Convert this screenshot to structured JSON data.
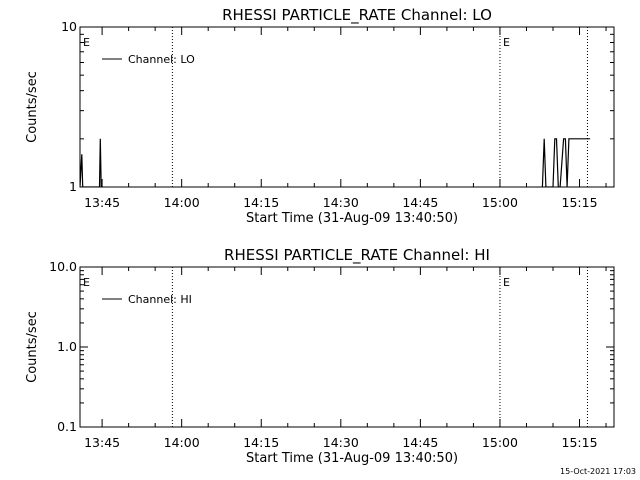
{
  "chart_data": [
    {
      "type": "line",
      "title": "RHESSI PARTICLE_RATE Channel: LO",
      "xlabel": "Start Time (31-Aug-09 13:40:50)",
      "ylabel": "Counts/sec",
      "yscale": "log",
      "ylim": [
        1,
        10
      ],
      "y_ticks": [
        "1",
        "10"
      ],
      "xlim": [
        "13:40:50",
        "15:21:30"
      ],
      "x_ticks": [
        "13:45",
        "14:00",
        "14:15",
        "14:30",
        "14:45",
        "15:00",
        "15:15"
      ],
      "legend": {
        "entries": [
          "Channel: LO"
        ],
        "placement": "top-left"
      },
      "event_markers": [
        {
          "label": "E",
          "time": "13:40:50"
        },
        {
          "label": "E",
          "time": "15:00:00"
        }
      ],
      "dotted_lines": [
        "13:58:15",
        "15:00:00",
        "15:16:30"
      ],
      "series": [
        {
          "name": "Channel: LO",
          "x": [
            "13:40:50",
            "13:41:10",
            "13:41:20",
            "13:41:30",
            "13:44:30",
            "13:44:40",
            "13:44:50",
            "13:45:00",
            "13:45:10",
            "15:08:00",
            "15:08:20",
            "15:08:40",
            "15:09:00",
            "15:09:20",
            "15:10:00",
            "15:10:20",
            "15:10:40",
            "15:11:00",
            "15:11:20",
            "15:12:00",
            "15:12:20",
            "15:12:40",
            "15:13:00",
            "15:13:20",
            "15:17:00"
          ],
          "y": [
            1.0,
            1.6,
            1.0,
            1.0,
            1.0,
            2.0,
            1.0,
            1.0,
            1.0,
            1.0,
            2.0,
            1.0,
            1.0,
            1.0,
            1.0,
            2.0,
            2.0,
            1.0,
            1.0,
            2.0,
            2.0,
            1.0,
            2.0,
            2.0,
            2.0
          ]
        }
      ]
    },
    {
      "type": "line",
      "title": "RHESSI PARTICLE_RATE Channel: HI",
      "xlabel": "Start Time (31-Aug-09 13:40:50)",
      "ylabel": "Counts/sec",
      "yscale": "log",
      "ylim": [
        0.1,
        10
      ],
      "y_ticks": [
        "0.1",
        "1.0",
        "10.0"
      ],
      "xlim": [
        "13:40:50",
        "15:21:30"
      ],
      "x_ticks": [
        "13:45",
        "14:00",
        "14:15",
        "14:30",
        "14:45",
        "15:00",
        "15:15"
      ],
      "legend": {
        "entries": [
          "Channel: HI"
        ],
        "placement": "top-left"
      },
      "event_markers": [
        {
          "label": "E",
          "time": "13:40:50"
        },
        {
          "label": "E",
          "time": "15:00:00"
        }
      ],
      "dotted_lines": [
        "13:58:15",
        "15:00:00",
        "15:16:30"
      ],
      "series": [
        {
          "name": "Channel: HI",
          "x": [],
          "y": []
        }
      ]
    }
  ],
  "timestamp": "15-Oct-2021 17:03"
}
